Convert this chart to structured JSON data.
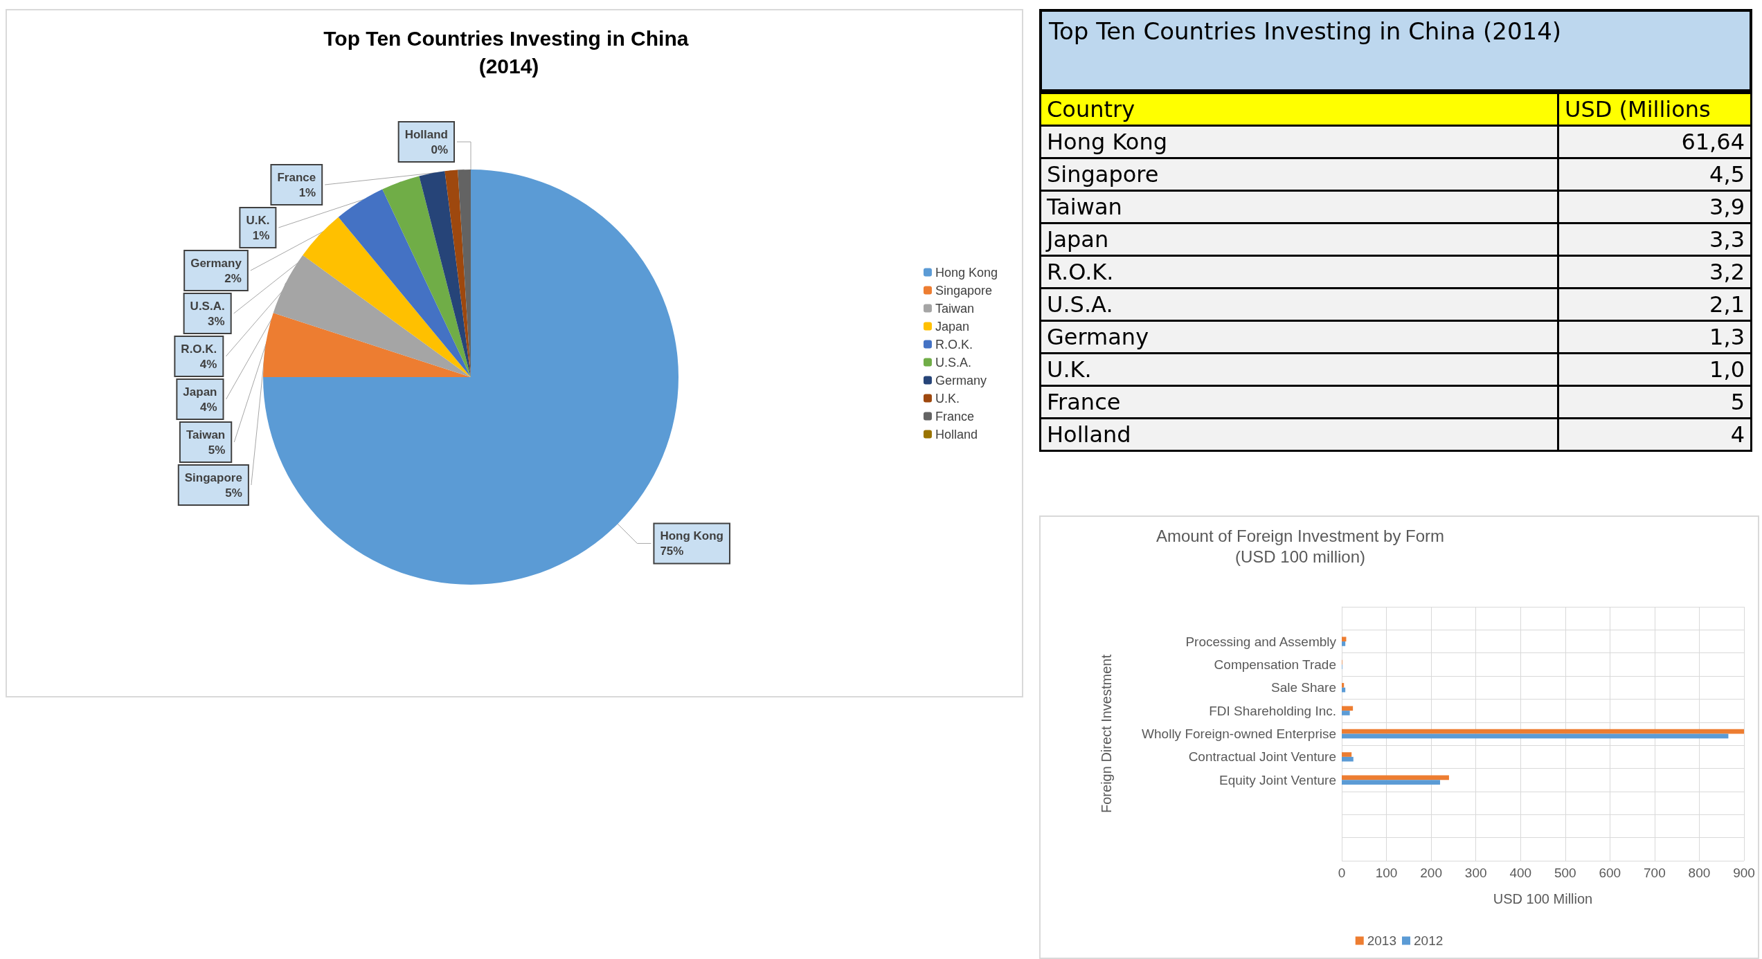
{
  "chart_data": [
    {
      "type": "pie",
      "title": "Top Ten Countries Investing in China (2014)",
      "categories": [
        "Hong Kong",
        "Singapore",
        "Taiwan",
        "Japan",
        "R.O.K.",
        "U.S.A.",
        "Germany",
        "U.K.",
        "France",
        "Holland"
      ],
      "values": [
        75,
        5,
        5,
        4,
        4,
        3,
        2,
        1,
        1,
        0
      ],
      "colors": [
        "#5b9bd5",
        "#ed7d31",
        "#a5a5a5",
        "#ffc000",
        "#4472c4",
        "#70ad47",
        "#264478",
        "#9e480e",
        "#636363",
        "#997300"
      ],
      "value_labels": [
        "75%",
        "5%",
        "5%",
        "4%",
        "4%",
        "3%",
        "2%",
        "1%",
        "1%",
        "0%"
      ],
      "legend": "right"
    },
    {
      "type": "other",
      "title": "Top Ten Countries Investing in China (2014)",
      "annotations": [
        "Country",
        "USD (Millions"
      ],
      "categories": [
        "Hong Kong",
        "Singapore",
        "Taiwan",
        "Japan",
        "R.O.K.",
        "U.S.A.",
        "Germany",
        "U.K.",
        "France",
        "Holland"
      ],
      "value_labels": [
        "61,64",
        "4,5",
        "3,9",
        "3,3",
        "3,2",
        "2,1",
        "1,3",
        "1,0",
        "5",
        "4"
      ]
    },
    {
      "type": "bar",
      "orientation": "horizontal",
      "title": "Amount of Foreign Investment by Form",
      "subtitle": "(USD 100 million)",
      "xlabel": "USD 100 Million",
      "ylabel": "Foreign Direct Investment",
      "categories": [
        null,
        "Processing and Assembly",
        "Compensation Trade",
        "Sale Share",
        "FDI Shareholding Inc.",
        "Wholly Foreign-owned Enterprise",
        "Contractual Joint Venture",
        "Equity Joint Venture",
        null,
        null,
        null
      ],
      "series": [
        {
          "name": "2013",
          "color": "#ed7d31",
          "values": [
            null,
            10,
            1,
            5,
            25,
            900,
            22,
            240,
            null,
            null,
            null
          ]
        },
        {
          "name": "2012",
          "color": "#5b9bd5",
          "values": [
            null,
            8,
            1,
            8,
            18,
            865,
            26,
            220,
            null,
            null,
            null
          ]
        }
      ],
      "xlim": [
        0,
        900
      ],
      "xticks": [
        0,
        100,
        200,
        300,
        400,
        500,
        600,
        700,
        800,
        900
      ],
      "grid": true,
      "legend": "bottom"
    }
  ]
}
